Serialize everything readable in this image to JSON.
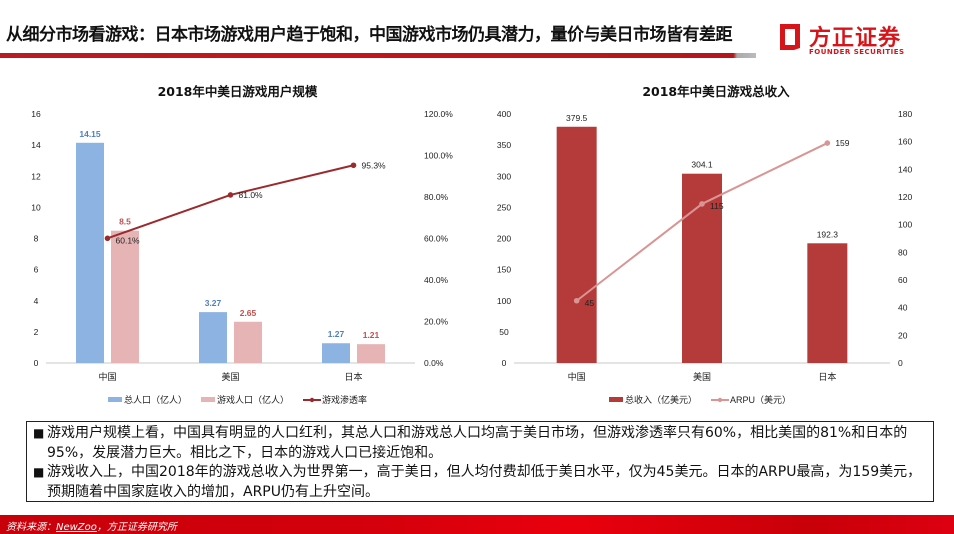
{
  "header": {
    "title": "从细分市场看游戏：日本市场游戏用户趋于饱和，中国游戏市场仍具潜力，量价与美日市场皆有差距",
    "brand_cn": "方正证券",
    "brand_en": "FOUNDER SECURITIES",
    "accent_color": "#d7141a"
  },
  "chart_data": [
    {
      "type": "bar",
      "title": "2018年中美日游戏用户规模",
      "categories": [
        "中国",
        "美国",
        "日本"
      ],
      "series": [
        {
          "name": "总人口（亿人）",
          "kind": "bar",
          "axis": "left",
          "color": "#8db3e2",
          "label_color": "#4f81bd",
          "values": [
            14.15,
            3.27,
            1.27
          ],
          "labels": [
            "14.15",
            "3.27",
            "1.27"
          ]
        },
        {
          "name": "游戏人口（亿人）",
          "kind": "bar",
          "axis": "left",
          "color": "#e6b4b4",
          "label_color": "#c0504d",
          "values": [
            8.5,
            2.65,
            1.21
          ],
          "labels": [
            "8.5",
            "2.65",
            "1.21"
          ]
        },
        {
          "name": "游戏渗透率",
          "kind": "line",
          "axis": "right",
          "color": "#9b2a2d",
          "values": [
            60.1,
            81.0,
            95.3
          ],
          "labels": [
            "60.1%",
            "81.0%",
            "95.3%"
          ]
        }
      ],
      "y_left": {
        "min": 0,
        "max": 16,
        "ticks": [
          "0",
          "2",
          "4",
          "6",
          "8",
          "10",
          "12",
          "14",
          "16"
        ]
      },
      "y_right": {
        "min": 0,
        "max": 120,
        "ticks": [
          "0.0%",
          "20.0%",
          "40.0%",
          "60.0%",
          "80.0%",
          "100.0%",
          "120.0%"
        ]
      },
      "grid": false,
      "legend": "bottom"
    },
    {
      "type": "bar",
      "title": "2018年中美日游戏总收入",
      "categories": [
        "中国",
        "美国",
        "日本"
      ],
      "series": [
        {
          "name": "总收入（亿美元）",
          "kind": "bar",
          "axis": "left",
          "color": "#b53a3a",
          "label_color": "#222222",
          "values": [
            379.5,
            304.1,
            192.3
          ],
          "labels": [
            "379.5",
            "304.1",
            "192.3"
          ]
        },
        {
          "name": "ARPU（美元）",
          "kind": "line",
          "axis": "right",
          "color": "#d99594",
          "values": [
            45,
            115,
            159
          ],
          "labels": [
            "45",
            "115",
            "159"
          ]
        }
      ],
      "y_left": {
        "min": 0,
        "max": 400,
        "ticks": [
          "0",
          "50",
          "100",
          "150",
          "200",
          "250",
          "300",
          "350",
          "400"
        ]
      },
      "y_right": {
        "min": 0,
        "max": 180,
        "ticks": [
          "0",
          "20",
          "40",
          "60",
          "80",
          "100",
          "120",
          "140",
          "160",
          "180"
        ]
      },
      "grid": false,
      "legend": "bottom"
    }
  ],
  "summary": {
    "bullet_mark": "■",
    "bullets": [
      "游戏用户规模上看，中国具有明显的人口红利，其总人口和游戏总人口均高于美日市场，但游戏渗透率只有60%，相比美国的81%和日本的95%，发展潜力巨大。相比之下，日本的游戏人口已接近饱和。",
      "游戏收入上，中国2018年的游戏总收入为世界第一，高于美日，但人均付费却低于美日水平，仅为45美元。日本的ARPU最高，为159美元，预期随着中国家庭收入的增加，ARPU仍有上升空间。"
    ]
  },
  "footer": {
    "source_prefix": "资料来源：",
    "source_link": "NewZoo",
    "source_suffix": "，方正证券研究所"
  }
}
